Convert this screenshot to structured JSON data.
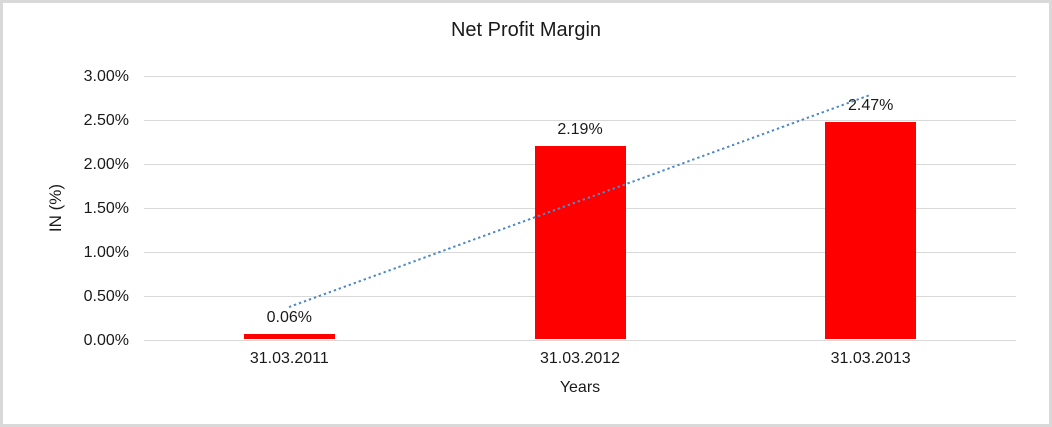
{
  "chart": {
    "title": "Net Profit Margin",
    "y_axis_title": "IN (%)",
    "x_axis_title": "Years"
  },
  "chart_data": {
    "type": "bar",
    "title": "Net Profit Margin",
    "xlabel": "Years",
    "ylabel": "IN (%)",
    "categories": [
      "31.03.2011",
      "31.03.2012",
      "31.03.2013"
    ],
    "values": [
      0.06,
      2.19,
      2.47
    ],
    "data_labels": [
      "0.06%",
      "2.19%",
      "2.47%"
    ],
    "ylim": [
      0,
      3
    ],
    "yticks": [
      {
        "value": 3.0,
        "label": "3.00%"
      },
      {
        "value": 2.5,
        "label": "2.50%"
      },
      {
        "value": 2.0,
        "label": "2.00%"
      },
      {
        "value": 1.5,
        "label": "1.50%"
      },
      {
        "value": 1.0,
        "label": "1.00%"
      },
      {
        "value": 0.5,
        "label": "0.50%"
      },
      {
        "value": 0.0,
        "label": "0.00%"
      }
    ],
    "grid": true,
    "legend": false,
    "colors": {
      "bar": "#ff0000",
      "trendline": "#4e8ac8",
      "gridline": "#d9d9d9",
      "text": "#1a1a1a"
    },
    "trendline": {
      "type": "linear",
      "style": "dotted",
      "spans_categories": [
        1,
        3
      ]
    }
  }
}
